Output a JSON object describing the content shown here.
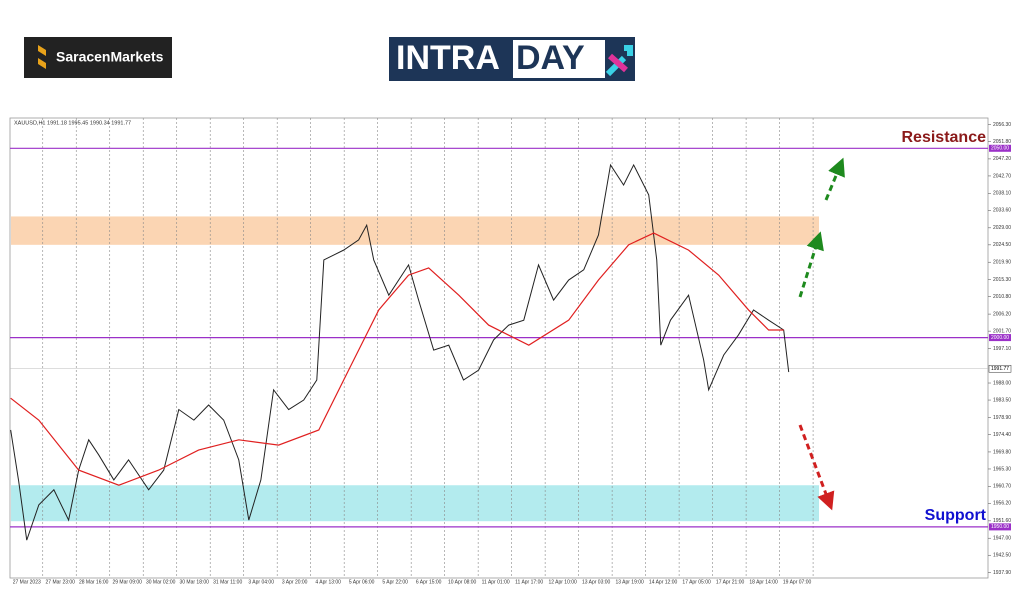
{
  "header": {
    "brand": "SaracenMarkets",
    "banner_a": "INTRA",
    "banner_b": "DAY"
  },
  "chart_data": {
    "type": "line",
    "title": "XAUUSD,H1  1991.18 1995.45 1990.34 1991.77",
    "xlim": [
      -0.5,
      28.7
    ],
    "xticks": [
      {
        "value": 0,
        "label": "27 Mar 2023"
      },
      {
        "value": 1,
        "label": "27 Mar 23:00"
      },
      {
        "value": 2,
        "label": "28 Mar 16:00"
      },
      {
        "value": 3,
        "label": "29 Mar 09:00"
      },
      {
        "value": 4,
        "label": "30 Mar 02:00"
      },
      {
        "value": 5,
        "label": "30 Mar 18:00"
      },
      {
        "value": 6,
        "label": "31 Mar 11:00"
      },
      {
        "value": 7,
        "label": "3 Apr 04:00"
      },
      {
        "value": 8,
        "label": "3 Apr 20:00"
      },
      {
        "value": 9,
        "label": "4 Apr 13:00"
      },
      {
        "value": 10,
        "label": "5 Apr 06:00"
      },
      {
        "value": 11,
        "label": "5 Apr 22:00"
      },
      {
        "value": 12,
        "label": "6 Apr 15:00"
      },
      {
        "value": 13,
        "label": "10 Apr 08:00"
      },
      {
        "value": 14,
        "label": "11 Apr 01:00"
      },
      {
        "value": 15,
        "label": "11 Apr 17:00"
      },
      {
        "value": 16,
        "label": "12 Apr 10:00"
      },
      {
        "value": 17,
        "label": "13 Apr 03:00"
      },
      {
        "value": 18,
        "label": "13 Apr 19:00"
      },
      {
        "value": 19,
        "label": "14 Apr 12:00"
      },
      {
        "value": 20,
        "label": "17 Apr 05:00"
      },
      {
        "value": 21,
        "label": "17 Apr 21:00"
      },
      {
        "value": 22,
        "label": "18 Apr 14:00"
      },
      {
        "value": 23,
        "label": "19 Apr 07:00"
      }
    ],
    "ylim": [
      1936.5,
      2058
    ],
    "yticks": [
      {
        "value": 2056.3,
        "label": "2056.30"
      },
      {
        "value": 2051.8,
        "label": "2051.80"
      },
      {
        "value": 2047.2,
        "label": "2047.20"
      },
      {
        "value": 2042.7,
        "label": "2042.70"
      },
      {
        "value": 2038.1,
        "label": "2038.10"
      },
      {
        "value": 2033.6,
        "label": "2033.60"
      },
      {
        "value": 2029,
        "label": "2029.00"
      },
      {
        "value": 2024.5,
        "label": "2024.50"
      },
      {
        "value": 2019.9,
        "label": "2019.90"
      },
      {
        "value": 2015.3,
        "label": "2015.30"
      },
      {
        "value": 2010.8,
        "label": "2010.80"
      },
      {
        "value": 2006.2,
        "label": "2006.20"
      },
      {
        "value": 2001.7,
        "label": "2001.70"
      },
      {
        "value": 1997.1,
        "label": "1997.10"
      },
      {
        "value": 1988,
        "label": "1988.00"
      },
      {
        "value": 1983.5,
        "label": "1983.50"
      },
      {
        "value": 1978.9,
        "label": "1978.90"
      },
      {
        "value": 1974.4,
        "label": "1974.40"
      },
      {
        "value": 1969.8,
        "label": "1969.80"
      },
      {
        "value": 1965.3,
        "label": "1965.30"
      },
      {
        "value": 1960.7,
        "label": "1960.70"
      },
      {
        "value": 1956.2,
        "label": "1956.20"
      },
      {
        "value": 1951.6,
        "label": "1951.60"
      },
      {
        "value": 1947,
        "label": "1947.00"
      },
      {
        "value": 1942.5,
        "label": "1942.50"
      },
      {
        "value": 1937.9,
        "label": "1937.90"
      }
    ],
    "grid": true,
    "zones": [
      {
        "from": 2024.5,
        "to": 2032,
        "color": "#fbd5b3"
      },
      {
        "from": 1951.5,
        "to": 1961,
        "color": "#b3ebee"
      }
    ],
    "levels": [
      {
        "value": 2050,
        "label": "2050.00"
      },
      {
        "value": 2000,
        "label": "2000.00"
      },
      {
        "value": 1950,
        "label": "1950.00"
      }
    ],
    "current": {
      "value": 1991.77,
      "label": "1991.77"
    },
    "annotations": [
      "Resistance",
      "Support"
    ],
    "series": [
      {
        "color": "#222222",
        "x": [
          -0.48,
          -0.24,
          0,
          0.36,
          0.81,
          1.25,
          1.55,
          1.85,
          2.15,
          2.6,
          3.04,
          3.64,
          4.09,
          4.54,
          4.99,
          5.43,
          5.88,
          6.33,
          6.63,
          6.99,
          7.37,
          7.82,
          8.27,
          8.66,
          8.87,
          9.46,
          9.91,
          10.15,
          10.36,
          10.81,
          11.4,
          11.7,
          12.15,
          12.6,
          13.04,
          13.49,
          13.94,
          14.39,
          14.84,
          15.28,
          15.73,
          16.18,
          16.63,
          17.07,
          17.43,
          17.82,
          18.12,
          18.57,
          18.81,
          18.93,
          19.22,
          19.76,
          20.21,
          20.36,
          20.81,
          21.25,
          21.7,
          22.15,
          22.6,
          22.75
        ],
        "values": [
          1975.6,
          1962,
          1946.5,
          1955.8,
          1959.8,
          1951.8,
          1965,
          1973,
          1969,
          1962.4,
          1967.7,
          1959.8,
          1965,
          1981,
          1978.2,
          1982.2,
          1978.2,
          1967.7,
          1951.8,
          1962.4,
          1986.2,
          1981,
          1983.5,
          1988.8,
          2020.5,
          2023.1,
          2025.8,
          2029.7,
          2020.5,
          2011.2,
          2019.2,
          2009.9,
          1996.7,
          1998,
          1988.8,
          1991.4,
          1999.4,
          2003.3,
          2004.6,
          2019.2,
          2009.9,
          2015.2,
          2017.9,
          2027.1,
          2045.6,
          2040.3,
          2045.6,
          2037.7,
          2020.5,
          1998,
          2004.6,
          2011.2,
          1994.1,
          1986.2,
          1995.4,
          2000.7,
          2007.3,
          2004.6,
          2002,
          1990.9
        ]
      },
      {
        "color": "#e02020",
        "x": [
          -0.48,
          0.36,
          1.55,
          2.75,
          3.94,
          5.13,
          6.33,
          7.52,
          8.72,
          9.61,
          10.51,
          11.4,
          12,
          12.9,
          13.79,
          14.99,
          16.18,
          17.07,
          17.97,
          18.72,
          19.76,
          20.66,
          21.55,
          22.15,
          22.6
        ],
        "values": [
          1984,
          1978.2,
          1965,
          1961,
          1965,
          1970.3,
          1973,
          1971.6,
          1975.6,
          1991.4,
          2007.3,
          2016.5,
          2018.4,
          2011.2,
          2003.3,
          1998,
          2004.6,
          2015.2,
          2024.5,
          2027.6,
          2023.1,
          2016.5,
          2007.3,
          2002,
          2002
        ]
      }
    ]
  }
}
